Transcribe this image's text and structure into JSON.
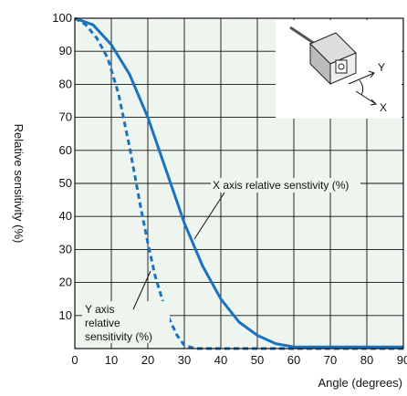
{
  "chart_data": {
    "type": "line",
    "xlabel": "Angle (degrees)",
    "ylabel": "Relative sensitivity (%)",
    "xlim": [
      0,
      90
    ],
    "ylim": [
      0,
      100
    ],
    "x_ticks": [
      "0",
      "10",
      "20",
      "30",
      "40",
      "50",
      "60",
      "70",
      "80",
      "90"
    ],
    "y_ticks": [
      "10",
      "20",
      "30",
      "40",
      "50",
      "60",
      "70",
      "80",
      "90",
      "100"
    ],
    "grid": true,
    "plot_background": "#eef5ee",
    "series": [
      {
        "name": "X axis relative senstivity (%)",
        "style": "solid",
        "color": "#1a73c0",
        "x": [
          0,
          5,
          10,
          15,
          20,
          25,
          30,
          35,
          40,
          45,
          50,
          55,
          60,
          70,
          80,
          90
        ],
        "y": [
          100,
          98,
          92,
          83,
          70,
          54,
          38,
          25,
          15,
          8,
          4,
          1.5,
          0.5,
          0.5,
          0.5,
          0.5
        ]
      },
      {
        "name": "Y axis relative sensitivity (%)",
        "style": "dashed",
        "color": "#1a73c0",
        "x": [
          0,
          3,
          6,
          9,
          12,
          15,
          18,
          20,
          22,
          25,
          28,
          30,
          33,
          40,
          60,
          90
        ],
        "y": [
          100,
          98,
          94,
          88,
          77,
          61,
          43,
          32,
          22,
          11,
          4,
          1,
          0,
          0,
          0,
          0
        ]
      }
    ],
    "annotations": [
      {
        "text": "X axis relative senstivity (%)"
      },
      {
        "lines": [
          "Y axis",
          "relative",
          "sensitivity (%)"
        ]
      }
    ],
    "inset": {
      "icon": "sensor-icon",
      "axis_labels": [
        "Y",
        "X"
      ]
    }
  }
}
